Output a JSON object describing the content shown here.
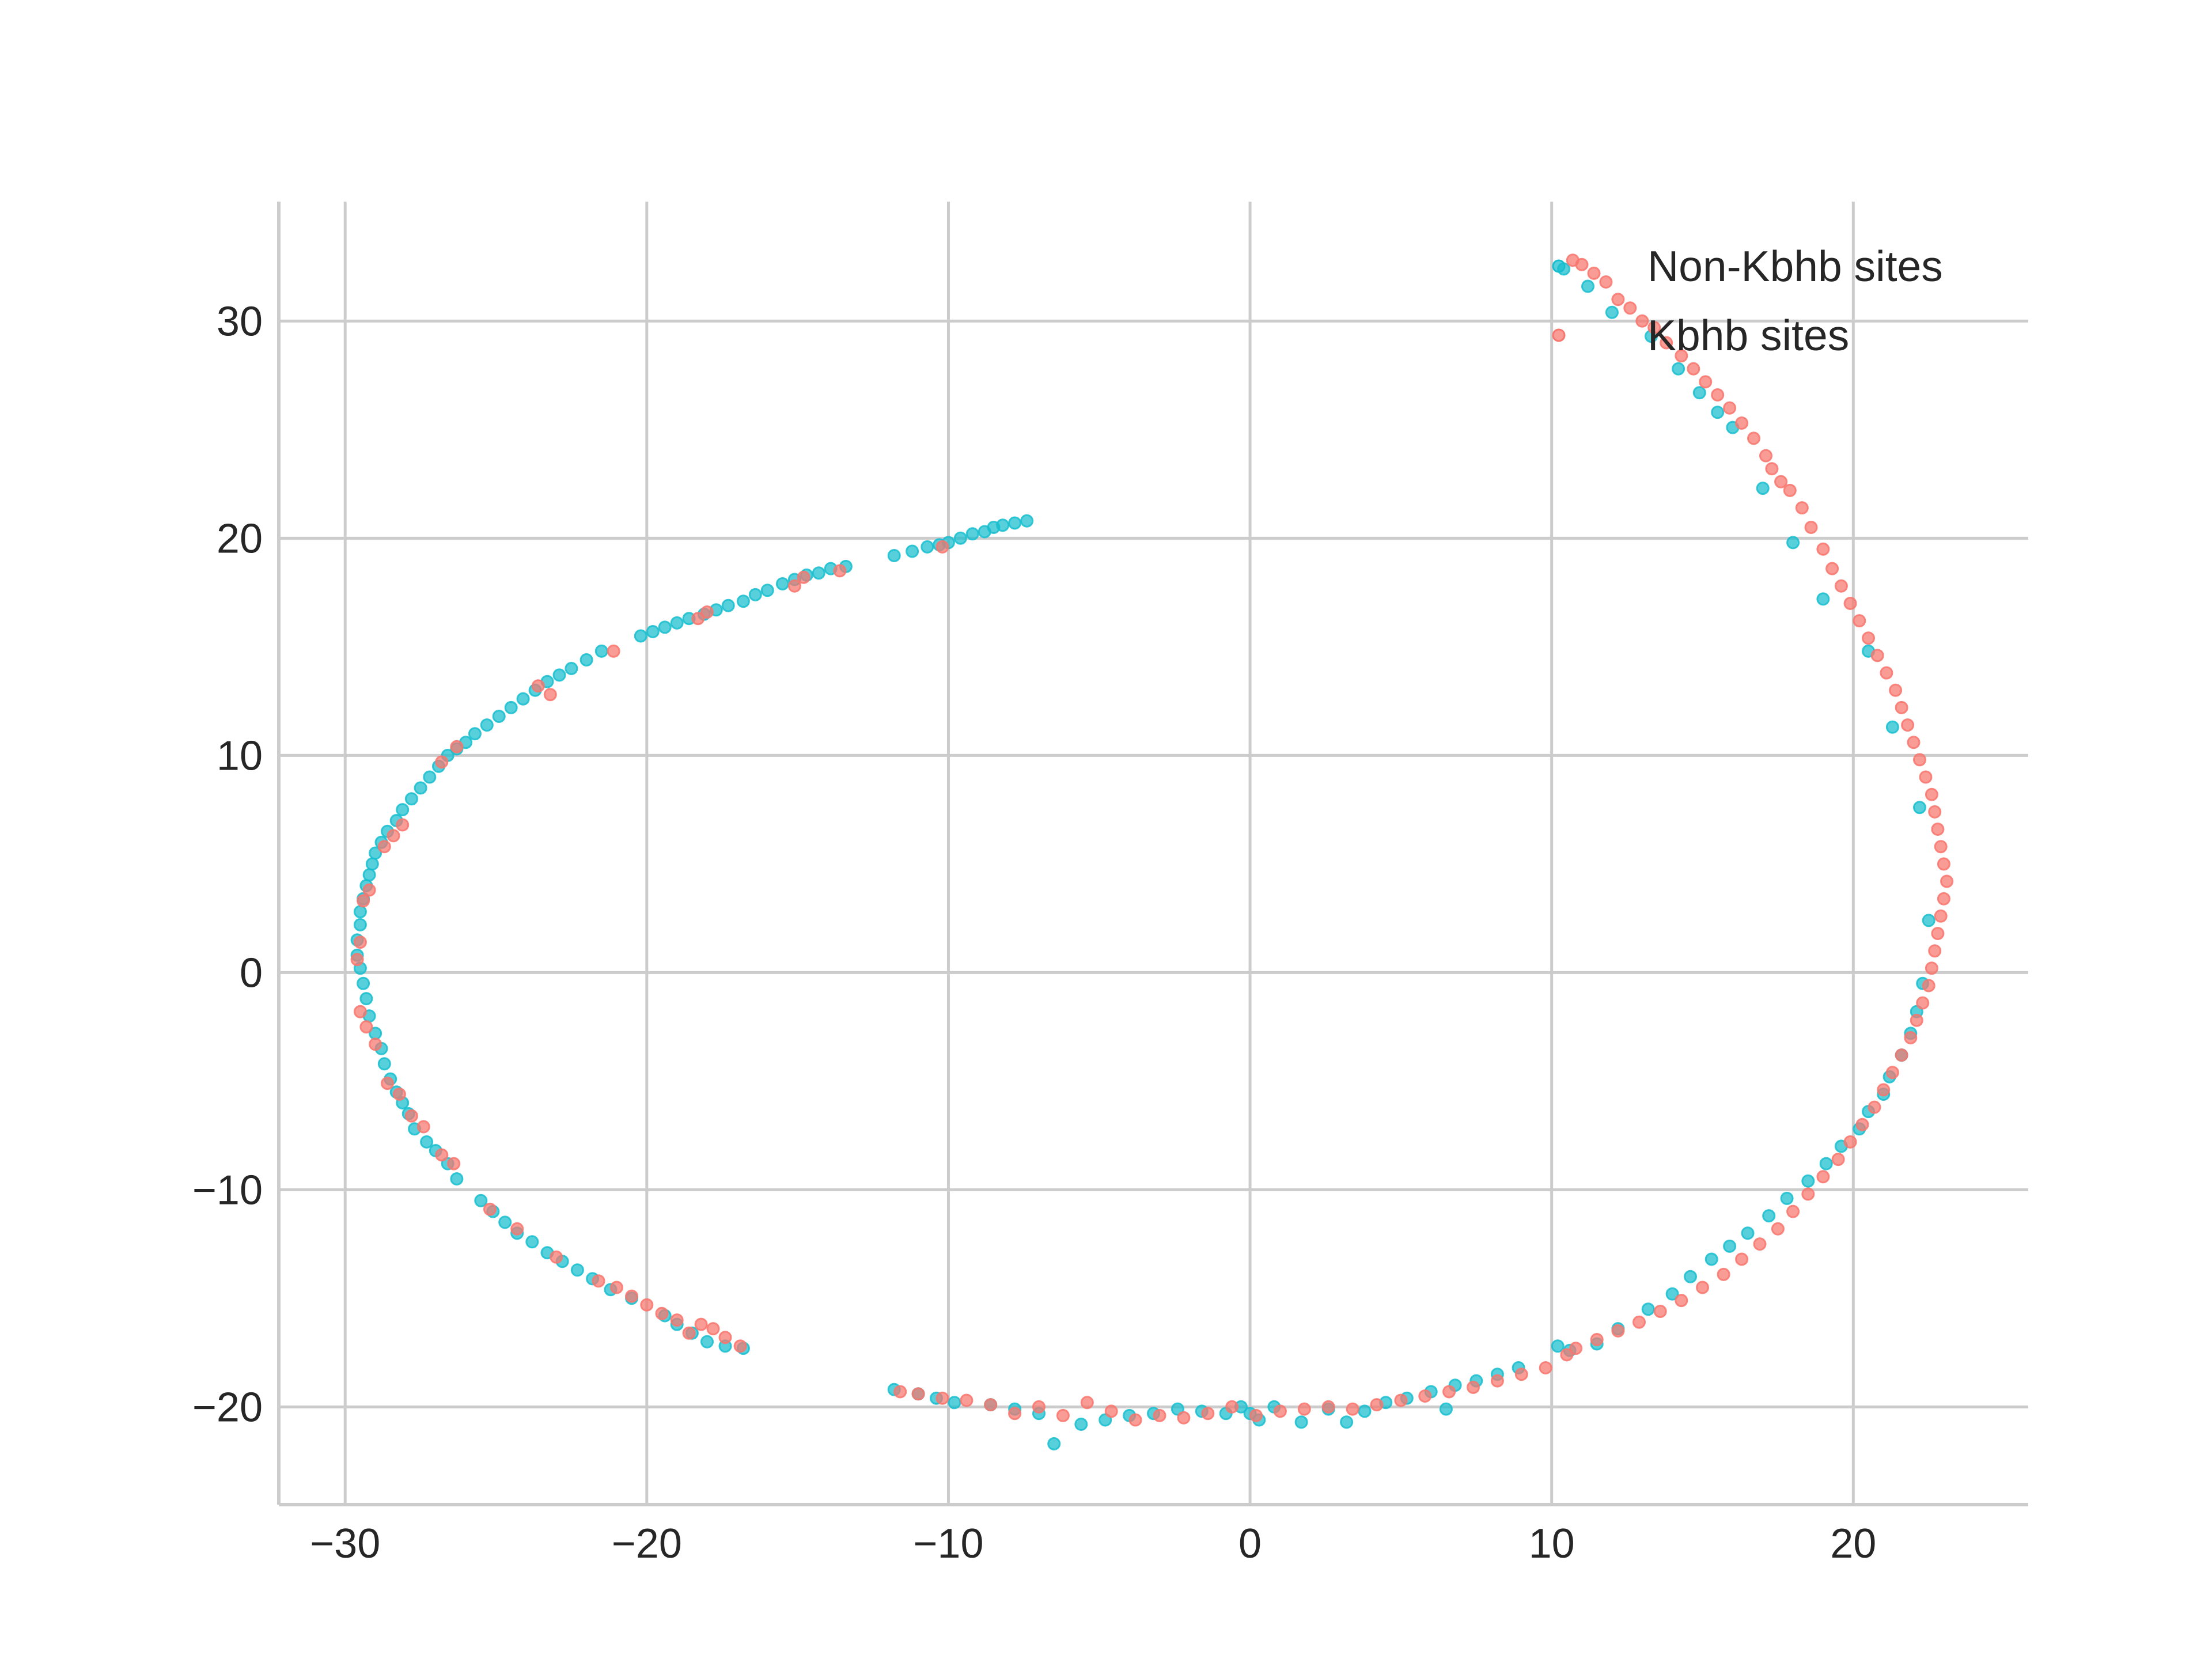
{
  "chart_data": {
    "type": "scatter",
    "title": "",
    "xlabel": "",
    "ylabel": "",
    "xlim": [
      -32.2,
      25.8
    ],
    "ylim": [
      -24.5,
      35.5
    ],
    "xticks": [
      -30,
      -20,
      -10,
      0,
      10,
      20
    ],
    "yticks": [
      -20,
      -10,
      0,
      10,
      20,
      30
    ],
    "xtick_labels": [
      "−30",
      "−20",
      "−10",
      "0",
      "10",
      "20"
    ],
    "ytick_labels": [
      "−20",
      "−10",
      "0",
      "10",
      "20",
      "30"
    ],
    "grid": true,
    "legend_position": "top-right",
    "series": [
      {
        "name": "Non-Kbhb sites",
        "color": "#17becf",
        "points": [
          [
            -7.4,
            20.8
          ],
          [
            -7.8,
            20.7
          ],
          [
            -8.2,
            20.6
          ],
          [
            -8.5,
            20.5
          ],
          [
            -8.8,
            20.3
          ],
          [
            -9.2,
            20.2
          ],
          [
            -9.6,
            20.0
          ],
          [
            -10.0,
            19.8
          ],
          [
            -10.3,
            19.7
          ],
          [
            -10.7,
            19.6
          ],
          [
            -11.2,
            19.4
          ],
          [
            -11.8,
            19.2
          ],
          [
            -13.4,
            18.7
          ],
          [
            -13.9,
            18.6
          ],
          [
            -14.3,
            18.4
          ],
          [
            -14.7,
            18.3
          ],
          [
            -15.1,
            18.1
          ],
          [
            -15.5,
            17.9
          ],
          [
            -16.0,
            17.6
          ],
          [
            -16.4,
            17.4
          ],
          [
            -16.8,
            17.1
          ],
          [
            -17.3,
            16.9
          ],
          [
            -17.7,
            16.7
          ],
          [
            -18.1,
            16.5
          ],
          [
            -18.6,
            16.3
          ],
          [
            -19.0,
            16.1
          ],
          [
            -19.4,
            15.9
          ],
          [
            -19.8,
            15.7
          ],
          [
            -20.2,
            15.5
          ],
          [
            -21.5,
            14.8
          ],
          [
            -22.0,
            14.4
          ],
          [
            -22.5,
            14.0
          ],
          [
            -22.9,
            13.7
          ],
          [
            -23.3,
            13.4
          ],
          [
            -23.7,
            13.0
          ],
          [
            -24.1,
            12.6
          ],
          [
            -24.5,
            12.2
          ],
          [
            -24.9,
            11.8
          ],
          [
            -25.3,
            11.4
          ],
          [
            -25.7,
            11.0
          ],
          [
            -26.0,
            10.6
          ],
          [
            -26.3,
            10.3
          ],
          [
            -26.6,
            10.0
          ],
          [
            -26.9,
            9.5
          ],
          [
            -27.2,
            9.0
          ],
          [
            -27.5,
            8.5
          ],
          [
            -27.8,
            8.0
          ],
          [
            -28.1,
            7.5
          ],
          [
            -28.3,
            7.0
          ],
          [
            -28.6,
            6.5
          ],
          [
            -28.8,
            6.0
          ],
          [
            -29.0,
            5.5
          ],
          [
            -29.1,
            5.0
          ],
          [
            -29.2,
            4.5
          ],
          [
            -29.3,
            4.0
          ],
          [
            -29.4,
            3.4
          ],
          [
            -29.5,
            2.8
          ],
          [
            -29.5,
            2.2
          ],
          [
            -29.6,
            1.5
          ],
          [
            -29.6,
            0.8
          ],
          [
            -29.5,
            0.2
          ],
          [
            -29.4,
            -0.5
          ],
          [
            -29.3,
            -1.2
          ],
          [
            -29.2,
            -2.0
          ],
          [
            -29.0,
            -2.8
          ],
          [
            -28.8,
            -3.5
          ],
          [
            -28.7,
            -4.2
          ],
          [
            -28.5,
            -4.9
          ],
          [
            -28.3,
            -5.5
          ],
          [
            -28.1,
            -6.0
          ],
          [
            -27.9,
            -6.5
          ],
          [
            -27.7,
            -7.2
          ],
          [
            -27.3,
            -7.8
          ],
          [
            -27.0,
            -8.2
          ],
          [
            -26.6,
            -8.8
          ],
          [
            -26.3,
            -9.5
          ],
          [
            -25.5,
            -10.5
          ],
          [
            -25.1,
            -11.0
          ],
          [
            -24.7,
            -11.5
          ],
          [
            -24.3,
            -12.0
          ],
          [
            -23.8,
            -12.4
          ],
          [
            -23.3,
            -12.9
          ],
          [
            -22.8,
            -13.3
          ],
          [
            -22.3,
            -13.7
          ],
          [
            -21.8,
            -14.1
          ],
          [
            -21.2,
            -14.6
          ],
          [
            -20.5,
            -15.0
          ],
          [
            -19.4,
            -15.8
          ],
          [
            -19.0,
            -16.2
          ],
          [
            -18.5,
            -16.6
          ],
          [
            -18.0,
            -17.0
          ],
          [
            -17.4,
            -17.2
          ],
          [
            -16.8,
            -17.3
          ],
          [
            -11.8,
            -19.2
          ],
          [
            -11.0,
            -19.4
          ],
          [
            -10.4,
            -19.6
          ],
          [
            -9.8,
            -19.8
          ],
          [
            -8.6,
            -19.9
          ],
          [
            -7.8,
            -20.1
          ],
          [
            -7.0,
            -20.3
          ],
          [
            -6.5,
            -21.7
          ],
          [
            -5.6,
            -20.8
          ],
          [
            -4.8,
            -20.6
          ],
          [
            -4.0,
            -20.4
          ],
          [
            -3.2,
            -20.3
          ],
          [
            -2.4,
            -20.1
          ],
          [
            -1.6,
            -20.2
          ],
          [
            -0.8,
            -20.3
          ],
          [
            -0.3,
            -20.0
          ],
          [
            0.0,
            -20.3
          ],
          [
            0.3,
            -20.6
          ],
          [
            0.8,
            -20.0
          ],
          [
            1.7,
            -20.7
          ],
          [
            2.6,
            -20.1
          ],
          [
            3.2,
            -20.7
          ],
          [
            3.8,
            -20.2
          ],
          [
            4.5,
            -19.8
          ],
          [
            5.2,
            -19.6
          ],
          [
            6.0,
            -19.3
          ],
          [
            6.5,
            -20.1
          ],
          [
            6.8,
            -19.0
          ],
          [
            7.5,
            -18.8
          ],
          [
            8.2,
            -18.5
          ],
          [
            8.9,
            -18.2
          ],
          [
            10.2,
            -17.2
          ],
          [
            10.6,
            -17.4
          ],
          [
            11.5,
            -17.1
          ],
          [
            12.2,
            -16.4
          ],
          [
            13.2,
            -15.5
          ],
          [
            14.0,
            -14.8
          ],
          [
            14.6,
            -14.0
          ],
          [
            15.3,
            -13.2
          ],
          [
            15.9,
            -12.6
          ],
          [
            16.5,
            -12.0
          ],
          [
            17.2,
            -11.2
          ],
          [
            17.8,
            -10.4
          ],
          [
            18.5,
            -9.6
          ],
          [
            19.1,
            -8.8
          ],
          [
            19.6,
            -8.0
          ],
          [
            20.2,
            -7.2
          ],
          [
            20.5,
            -6.4
          ],
          [
            21.0,
            -5.6
          ],
          [
            21.2,
            -4.8
          ],
          [
            21.6,
            -3.8
          ],
          [
            21.9,
            -2.8
          ],
          [
            22.1,
            -1.8
          ],
          [
            22.3,
            -0.5
          ],
          [
            22.5,
            2.4
          ],
          [
            10.4,
            32.4
          ],
          [
            11.2,
            31.6
          ],
          [
            12.0,
            30.4
          ],
          [
            13.3,
            29.3
          ],
          [
            14.2,
            27.8
          ],
          [
            14.9,
            26.7
          ],
          [
            15.5,
            25.8
          ],
          [
            16.0,
            25.1
          ],
          [
            17.0,
            22.3
          ],
          [
            18.0,
            19.8
          ],
          [
            19.0,
            17.2
          ],
          [
            20.5,
            14.8
          ],
          [
            21.3,
            11.3
          ],
          [
            22.2,
            7.6
          ]
        ]
      },
      {
        "name": "Kbhb sites",
        "color": "#f8766d",
        "points": [
          [
            10.7,
            32.8
          ],
          [
            11.0,
            32.6
          ],
          [
            11.4,
            32.2
          ],
          [
            11.8,
            31.8
          ],
          [
            12.2,
            31.0
          ],
          [
            12.6,
            30.6
          ],
          [
            13.0,
            30.0
          ],
          [
            13.4,
            29.7
          ],
          [
            13.8,
            29.0
          ],
          [
            14.3,
            28.4
          ],
          [
            14.7,
            27.8
          ],
          [
            15.1,
            27.2
          ],
          [
            15.5,
            26.6
          ],
          [
            15.9,
            26.0
          ],
          [
            16.3,
            25.3
          ],
          [
            16.7,
            24.6
          ],
          [
            17.1,
            23.8
          ],
          [
            17.3,
            23.2
          ],
          [
            17.6,
            22.6
          ],
          [
            17.9,
            22.2
          ],
          [
            18.3,
            21.4
          ],
          [
            18.6,
            20.5
          ],
          [
            19.0,
            19.5
          ],
          [
            19.3,
            18.6
          ],
          [
            19.6,
            17.8
          ],
          [
            19.9,
            17.0
          ],
          [
            20.2,
            16.2
          ],
          [
            20.5,
            15.4
          ],
          [
            20.8,
            14.6
          ],
          [
            21.1,
            13.8
          ],
          [
            21.4,
            13.0
          ],
          [
            21.6,
            12.2
          ],
          [
            21.8,
            11.4
          ],
          [
            22.0,
            10.6
          ],
          [
            22.2,
            9.8
          ],
          [
            22.4,
            9.0
          ],
          [
            22.6,
            8.2
          ],
          [
            22.7,
            7.4
          ],
          [
            22.8,
            6.6
          ],
          [
            22.9,
            5.8
          ],
          [
            23.0,
            5.0
          ],
          [
            23.1,
            4.2
          ],
          [
            23.0,
            3.4
          ],
          [
            22.9,
            2.6
          ],
          [
            22.8,
            1.8
          ],
          [
            22.7,
            1.0
          ],
          [
            22.6,
            0.2
          ],
          [
            22.5,
            -0.6
          ],
          [
            22.3,
            -1.4
          ],
          [
            22.1,
            -2.2
          ],
          [
            21.9,
            -3.0
          ],
          [
            21.6,
            -3.8
          ],
          [
            21.3,
            -4.6
          ],
          [
            21.0,
            -5.4
          ],
          [
            20.7,
            -6.2
          ],
          [
            20.3,
            -7.0
          ],
          [
            19.9,
            -7.8
          ],
          [
            19.5,
            -8.6
          ],
          [
            19.0,
            -9.4
          ],
          [
            18.5,
            -10.2
          ],
          [
            18.0,
            -11.0
          ],
          [
            17.5,
            -11.8
          ],
          [
            16.9,
            -12.5
          ],
          [
            16.3,
            -13.2
          ],
          [
            15.7,
            -13.9
          ],
          [
            15.0,
            -14.5
          ],
          [
            14.3,
            -15.1
          ],
          [
            13.6,
            -15.6
          ],
          [
            12.9,
            -16.1
          ],
          [
            12.2,
            -16.5
          ],
          [
            11.5,
            -16.9
          ],
          [
            10.8,
            -17.3
          ],
          [
            10.5,
            -17.6
          ],
          [
            9.8,
            -18.2
          ],
          [
            9.0,
            -18.5
          ],
          [
            8.2,
            -18.8
          ],
          [
            7.4,
            -19.1
          ],
          [
            6.6,
            -19.3
          ],
          [
            5.8,
            -19.5
          ],
          [
            5.0,
            -19.7
          ],
          [
            4.2,
            -19.9
          ],
          [
            3.4,
            -20.1
          ],
          [
            2.6,
            -20.0
          ],
          [
            1.8,
            -20.1
          ],
          [
            1.0,
            -20.2
          ],
          [
            0.2,
            -20.4
          ],
          [
            -0.6,
            -20.0
          ],
          [
            -1.4,
            -20.3
          ],
          [
            -2.2,
            -20.5
          ],
          [
            -3.0,
            -20.4
          ],
          [
            -3.8,
            -20.6
          ],
          [
            -4.6,
            -20.2
          ],
          [
            -5.4,
            -19.8
          ],
          [
            -6.2,
            -20.4
          ],
          [
            -7.0,
            -20.0
          ],
          [
            -7.8,
            -20.3
          ],
          [
            -8.6,
            -19.9
          ],
          [
            -9.4,
            -19.7
          ],
          [
            -10.2,
            -19.6
          ],
          [
            -11.0,
            -19.4
          ],
          [
            -11.6,
            -19.3
          ],
          [
            -16.9,
            -17.2
          ],
          [
            -17.4,
            -16.8
          ],
          [
            -17.8,
            -16.4
          ],
          [
            -18.2,
            -16.2
          ],
          [
            -18.6,
            -16.6
          ],
          [
            -19.0,
            -16.0
          ],
          [
            -19.5,
            -15.7
          ],
          [
            -20.0,
            -15.3
          ],
          [
            -20.5,
            -14.9
          ],
          [
            -21.0,
            -14.5
          ],
          [
            -21.6,
            -14.2
          ],
          [
            -23.0,
            -13.1
          ],
          [
            -24.3,
            -11.8
          ],
          [
            -25.2,
            -10.9
          ],
          [
            -26.4,
            -8.8
          ],
          [
            -26.8,
            -8.4
          ],
          [
            -27.4,
            -7.1
          ],
          [
            -27.8,
            -6.6
          ],
          [
            -28.2,
            -5.6
          ],
          [
            -28.6,
            -5.1
          ],
          [
            -29.0,
            -3.3
          ],
          [
            -29.3,
            -2.5
          ],
          [
            -29.5,
            -1.8
          ],
          [
            -29.6,
            0.6
          ],
          [
            -29.5,
            1.4
          ],
          [
            -29.4,
            3.3
          ],
          [
            -29.2,
            3.8
          ],
          [
            -28.7,
            5.8
          ],
          [
            -28.4,
            6.3
          ],
          [
            -28.1,
            6.8
          ],
          [
            -26.8,
            9.7
          ],
          [
            -26.3,
            10.4
          ],
          [
            -23.6,
            13.2
          ],
          [
            -23.2,
            12.8
          ],
          [
            -21.1,
            14.8
          ],
          [
            -18.3,
            16.3
          ],
          [
            -18.0,
            16.6
          ],
          [
            -15.1,
            17.8
          ],
          [
            -14.8,
            18.2
          ],
          [
            -13.6,
            18.5
          ],
          [
            -10.2,
            19.6
          ]
        ]
      }
    ]
  }
}
